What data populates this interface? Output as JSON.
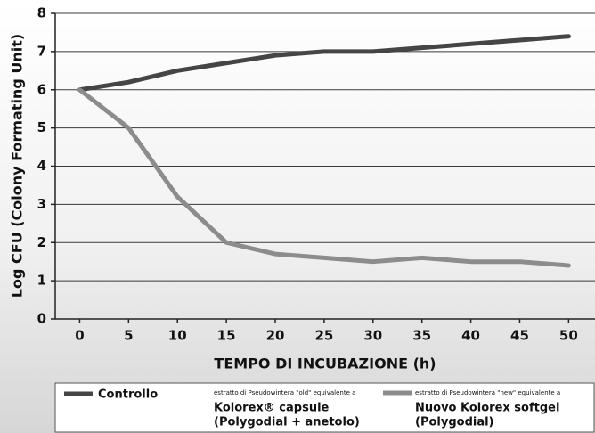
{
  "chart_data": {
    "type": "line",
    "x_label": "TEMPO DI INCUBAZIONE (h)",
    "y_label": "Log CFU (Colony Formating Unit)",
    "x": [
      0,
      5,
      10,
      15,
      20,
      25,
      30,
      35,
      40,
      45,
      50
    ],
    "series": [
      {
        "name": "Controllo",
        "color": "#454545",
        "values": [
          6,
          6.2,
          6.5,
          6.7,
          6.9,
          7.0,
          7.0,
          7.1,
          7.2,
          7.3,
          7.4
        ]
      },
      {
        "name": "Nuovo Kolorex softgel",
        "note": "estratto di Pseudowintera \"new\" equivalente a",
        "detail": "(Polygodial)",
        "color": "#8c8c8c",
        "values": [
          6,
          5,
          3.2,
          2.0,
          1.7,
          1.6,
          1.5,
          1.6,
          1.5,
          1.5,
          1.4
        ]
      }
    ],
    "other_legend_entries": [
      {
        "note": "estratto di Pseudowintera \"old\" equivalente a",
        "name": "Kolorex® capsule",
        "detail": "(Polygodial + anetolo)"
      }
    ],
    "xlim": [
      -2.5,
      52.7
    ],
    "ylim": [
      0,
      8
    ],
    "xticks": [
      0,
      5,
      10,
      15,
      20,
      25,
      30,
      35,
      40,
      45,
      50
    ],
    "yticks": [
      0,
      1,
      2,
      3,
      4,
      5,
      6,
      7,
      8
    ],
    "grid": true
  }
}
